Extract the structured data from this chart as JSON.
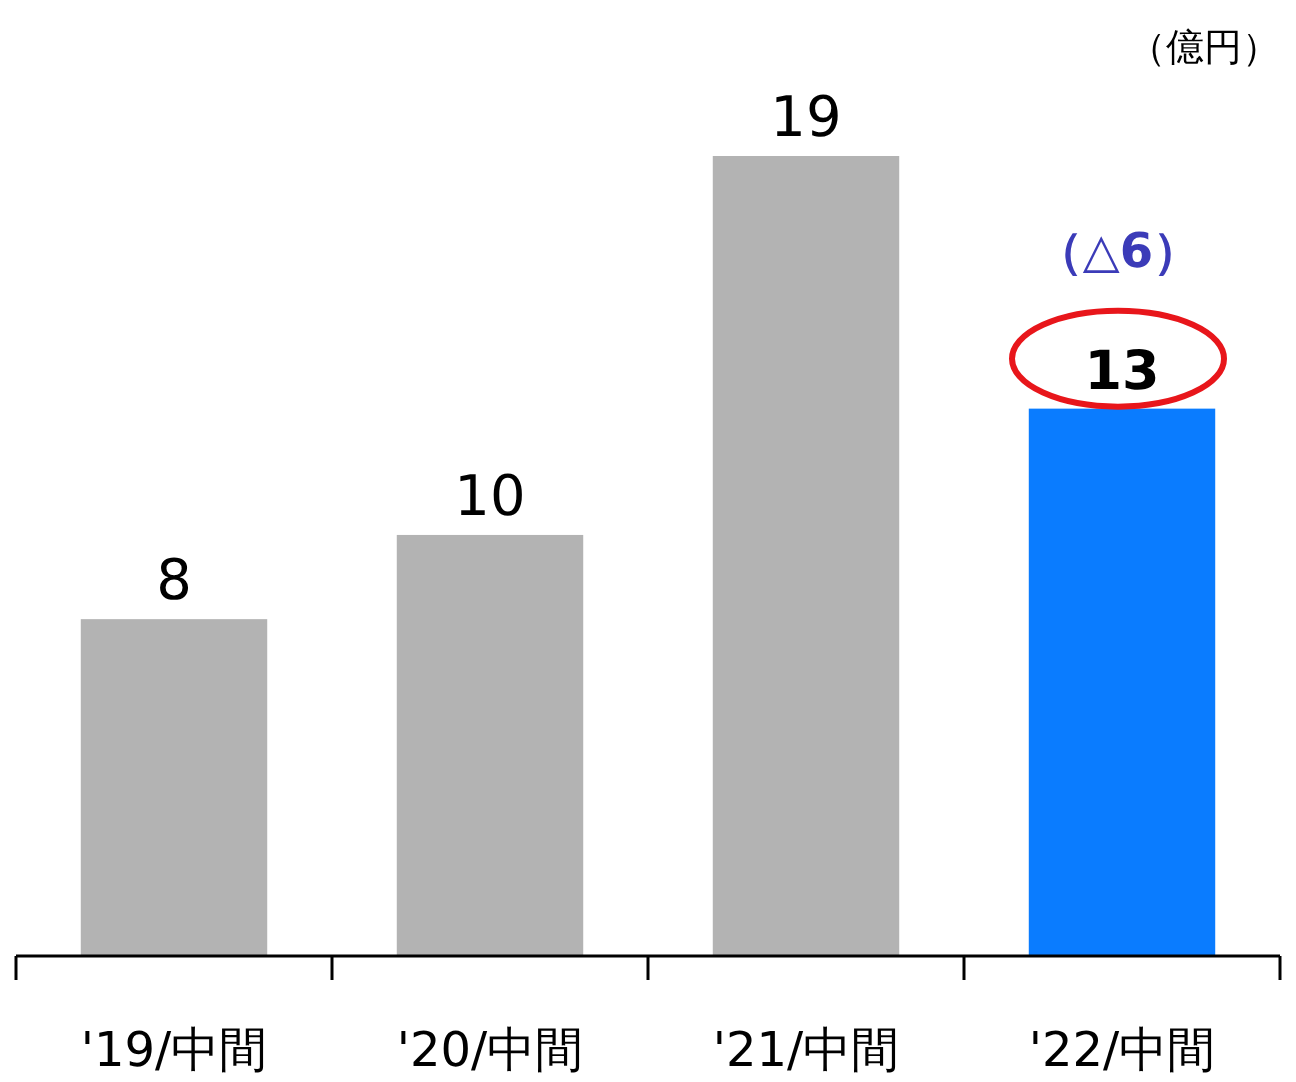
{
  "chart_data": {
    "type": "bar",
    "ylabel": "（億円）",
    "categories": [
      "'19/中間",
      "'20/中間",
      "'21/中間",
      "'22/中間"
    ],
    "values": [
      8,
      10,
      19,
      13
    ],
    "colors": [
      "#b3b3b3",
      "#b3b3b3",
      "#b3b3b3",
      "#0a7cff"
    ],
    "data_labels": true,
    "annotations": [
      {
        "text": "（△6）",
        "x": "'22/中間",
        "y": 13
      }
    ]
  }
}
